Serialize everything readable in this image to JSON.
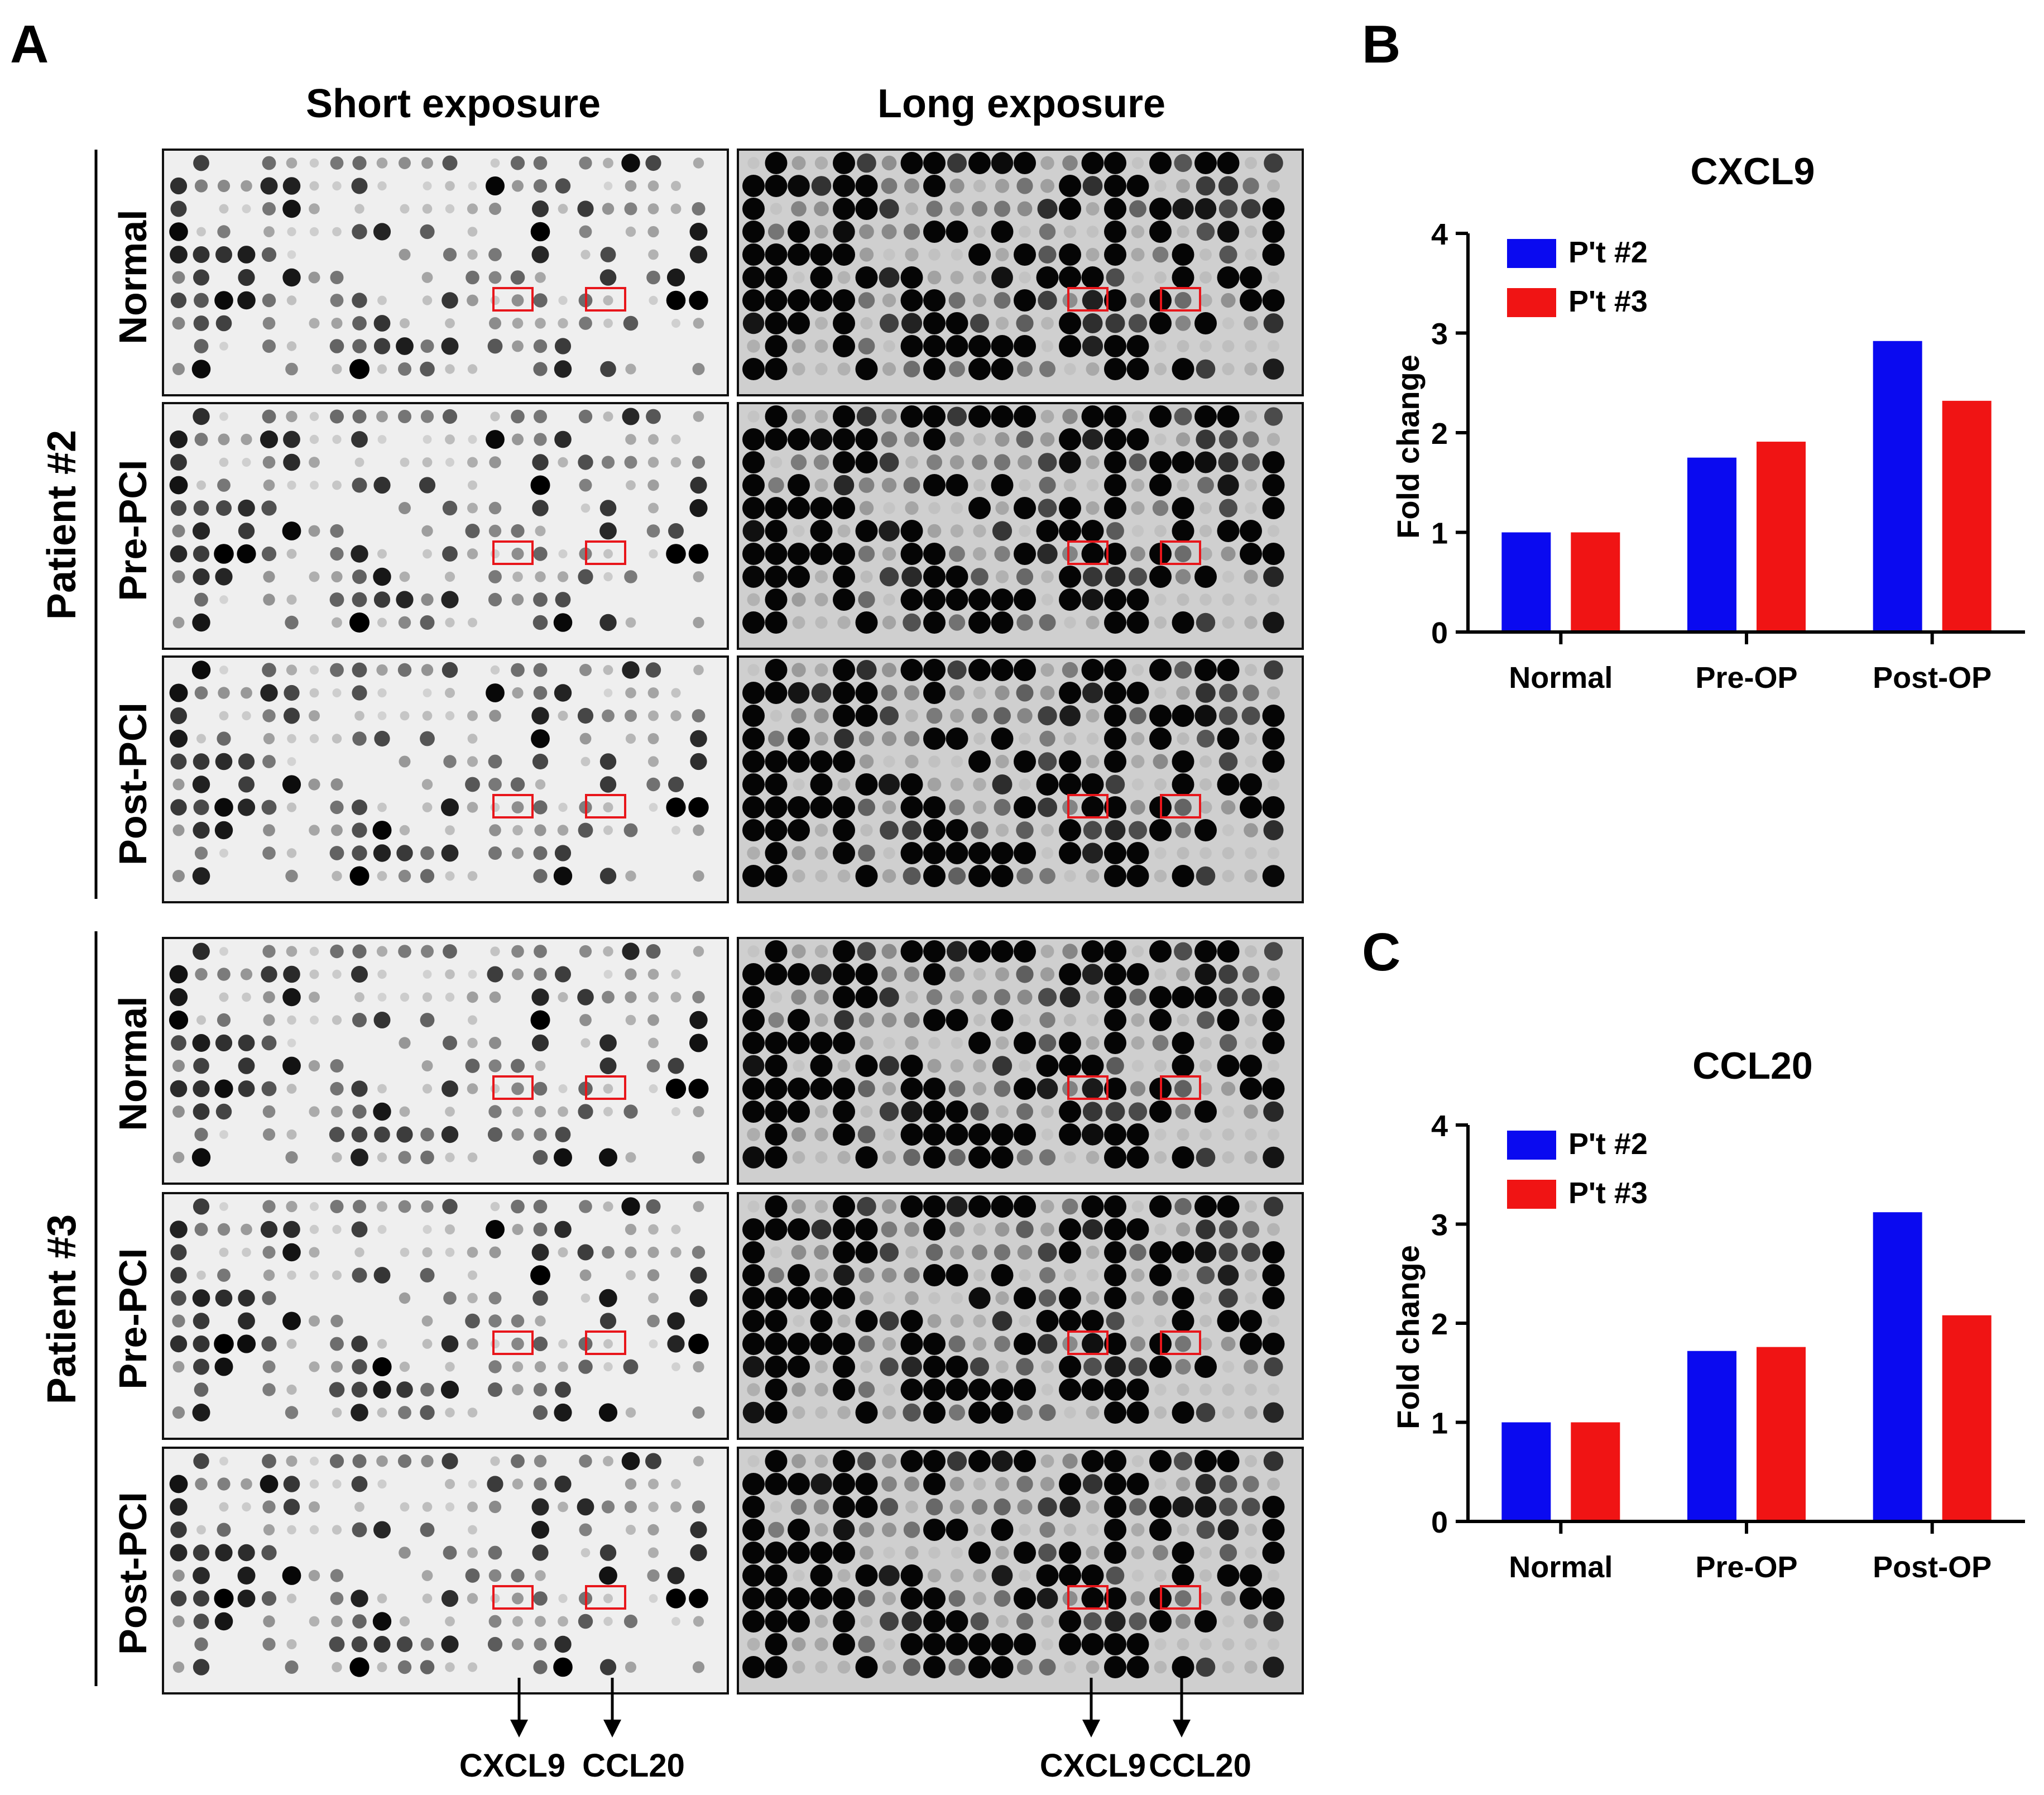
{
  "panels": {
    "a_label": "A",
    "b_label": "B",
    "c_label": "C"
  },
  "panel_a": {
    "column_headers": [
      "Short exposure",
      "Long exposure"
    ],
    "patients": [
      {
        "label": "Patient #2",
        "rows": [
          "Normal",
          "Pre-PCI",
          "Post-PCI"
        ]
      },
      {
        "label": "Patient #3",
        "rows": [
          "Normal",
          "Pre-PCI",
          "Post-PCI"
        ]
      }
    ],
    "arrow_labels": {
      "cxcl9": "CXCL9",
      "ccl20": "CCL20"
    }
  },
  "colors": {
    "series_1": "#0a0af0",
    "series_2": "#f01414",
    "highlight_box": "#e8161b",
    "blot_short_bg": "#efefef",
    "blot_long_bg": "#cfcfcf",
    "blot_dot": "#0c0c0c"
  },
  "chart_data": [
    {
      "type": "bar",
      "title": "CXCL9",
      "categories": [
        "Normal",
        "Pre-OP",
        "Post-OP"
      ],
      "series": [
        {
          "name": "P't #2",
          "values": [
            1.0,
            1.75,
            2.92
          ]
        },
        {
          "name": "P't #3",
          "values": [
            1.0,
            1.91,
            2.32
          ]
        }
      ],
      "xlabel": "",
      "ylabel": "Fold change",
      "ylim": [
        0,
        4
      ],
      "yticks": [
        "0",
        "1",
        "2",
        "3",
        "4"
      ],
      "legend": "top-left"
    },
    {
      "type": "bar",
      "title": "CCL20",
      "categories": [
        "Normal",
        "Pre-OP",
        "Post-OP"
      ],
      "series": [
        {
          "name": "P't #2",
          "values": [
            1.0,
            1.72,
            3.12
          ]
        },
        {
          "name": "P't #3",
          "values": [
            1.0,
            1.76,
            2.08
          ]
        }
      ],
      "xlabel": "",
      "ylabel": "Fold change",
      "ylim": [
        0,
        4
      ],
      "yticks": [
        "0",
        "1",
        "2",
        "3",
        "4"
      ],
      "legend": "top-left"
    }
  ]
}
